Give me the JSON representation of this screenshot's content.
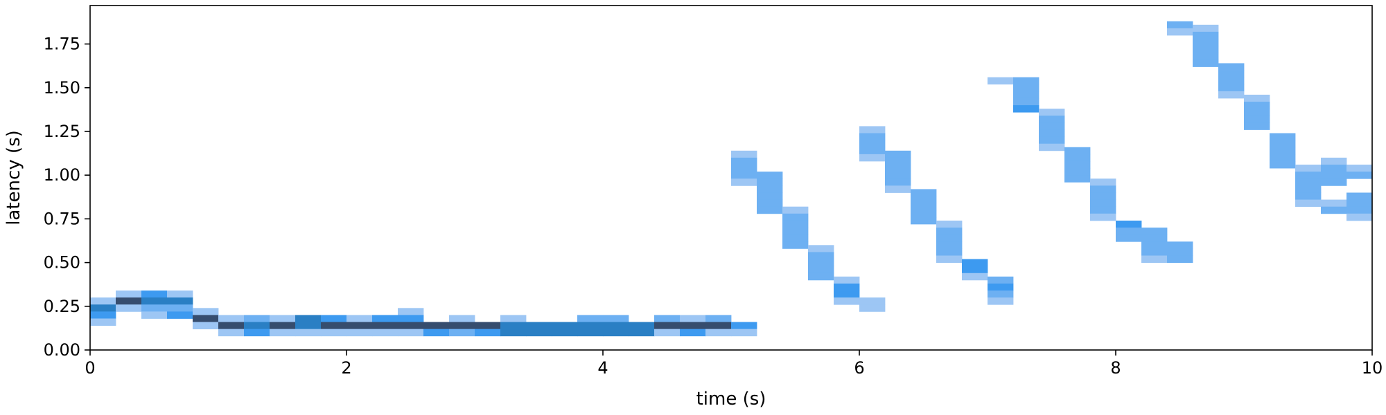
{
  "chart_data": {
    "type": "heatmap",
    "title": "",
    "xlabel": "time (s)",
    "ylabel": "latency (s)",
    "xlim": [
      0,
      10
    ],
    "ylim": [
      0,
      1.97
    ],
    "x_ticks": [
      0,
      2,
      4,
      6,
      8,
      10
    ],
    "x_tick_labels": [
      "0",
      "2",
      "4",
      "6",
      "8",
      "10"
    ],
    "y_ticks": [
      0,
      0.25,
      0.5,
      0.75,
      1.0,
      1.25,
      1.5,
      1.75
    ],
    "y_tick_labels": [
      "0.00",
      "0.25",
      "0.50",
      "0.75",
      "1.00",
      "1.25",
      "1.50",
      "1.75"
    ],
    "x_bin_width": 0.2,
    "y_bin_height": 0.04,
    "grid": false,
    "colors": {
      "light": "#9dc6f4",
      "medium": "#6db0f2",
      "strong": "#3d9af0",
      "dark": "#2a7fc4",
      "darkest": "#364d6e"
    },
    "cells": [
      {
        "x": 0.0,
        "y": 0.26,
        "level": "light"
      },
      {
        "x": 0.0,
        "y": 0.22,
        "level": "dark"
      },
      {
        "x": 0.0,
        "y": 0.18,
        "level": "strong"
      },
      {
        "x": 0.0,
        "y": 0.14,
        "level": "light"
      },
      {
        "x": 0.2,
        "y": 0.3,
        "level": "light"
      },
      {
        "x": 0.2,
        "y": 0.26,
        "level": "darkest"
      },
      {
        "x": 0.2,
        "y": 0.22,
        "level": "light"
      },
      {
        "x": 0.4,
        "y": 0.3,
        "level": "strong"
      },
      {
        "x": 0.4,
        "y": 0.26,
        "level": "dark"
      },
      {
        "x": 0.4,
        "y": 0.22,
        "level": "medium"
      },
      {
        "x": 0.4,
        "y": 0.18,
        "level": "light"
      },
      {
        "x": 0.6,
        "y": 0.3,
        "level": "light"
      },
      {
        "x": 0.6,
        "y": 0.26,
        "level": "dark"
      },
      {
        "x": 0.6,
        "y": 0.22,
        "level": "medium"
      },
      {
        "x": 0.6,
        "y": 0.18,
        "level": "strong"
      },
      {
        "x": 0.8,
        "y": 0.2,
        "level": "light"
      },
      {
        "x": 0.8,
        "y": 0.16,
        "level": "darkest"
      },
      {
        "x": 0.8,
        "y": 0.12,
        "level": "light"
      },
      {
        "x": 1.0,
        "y": 0.16,
        "level": "light"
      },
      {
        "x": 1.0,
        "y": 0.12,
        "level": "darkest"
      },
      {
        "x": 1.0,
        "y": 0.08,
        "level": "light"
      },
      {
        "x": 1.2,
        "y": 0.16,
        "level": "medium"
      },
      {
        "x": 1.2,
        "y": 0.12,
        "level": "dark"
      },
      {
        "x": 1.2,
        "y": 0.08,
        "level": "strong"
      },
      {
        "x": 1.4,
        "y": 0.16,
        "level": "light"
      },
      {
        "x": 1.4,
        "y": 0.12,
        "level": "darkest"
      },
      {
        "x": 1.4,
        "y": 0.08,
        "level": "light"
      },
      {
        "x": 1.6,
        "y": 0.16,
        "level": "dark"
      },
      {
        "x": 1.6,
        "y": 0.12,
        "level": "dark"
      },
      {
        "x": 1.6,
        "y": 0.08,
        "level": "light"
      },
      {
        "x": 1.8,
        "y": 0.16,
        "level": "strong"
      },
      {
        "x": 1.8,
        "y": 0.12,
        "level": "darkest"
      },
      {
        "x": 1.8,
        "y": 0.08,
        "level": "light"
      },
      {
        "x": 2.0,
        "y": 0.16,
        "level": "light"
      },
      {
        "x": 2.0,
        "y": 0.12,
        "level": "darkest"
      },
      {
        "x": 2.0,
        "y": 0.08,
        "level": "light"
      },
      {
        "x": 2.2,
        "y": 0.16,
        "level": "strong"
      },
      {
        "x": 2.2,
        "y": 0.12,
        "level": "darkest"
      },
      {
        "x": 2.2,
        "y": 0.08,
        "level": "light"
      },
      {
        "x": 2.4,
        "y": 0.2,
        "level": "light"
      },
      {
        "x": 2.4,
        "y": 0.16,
        "level": "strong"
      },
      {
        "x": 2.4,
        "y": 0.12,
        "level": "darkest"
      },
      {
        "x": 2.4,
        "y": 0.08,
        "level": "light"
      },
      {
        "x": 2.6,
        "y": 0.12,
        "level": "darkest"
      },
      {
        "x": 2.6,
        "y": 0.08,
        "level": "strong"
      },
      {
        "x": 2.8,
        "y": 0.16,
        "level": "light"
      },
      {
        "x": 2.8,
        "y": 0.12,
        "level": "darkest"
      },
      {
        "x": 2.8,
        "y": 0.08,
        "level": "medium"
      },
      {
        "x": 3.0,
        "y": 0.12,
        "level": "darkest"
      },
      {
        "x": 3.0,
        "y": 0.08,
        "level": "strong"
      },
      {
        "x": 3.2,
        "y": 0.16,
        "level": "light"
      },
      {
        "x": 3.2,
        "y": 0.12,
        "level": "dark"
      },
      {
        "x": 3.2,
        "y": 0.08,
        "level": "dark"
      },
      {
        "x": 3.4,
        "y": 0.12,
        "level": "dark"
      },
      {
        "x": 3.4,
        "y": 0.08,
        "level": "dark"
      },
      {
        "x": 3.6,
        "y": 0.12,
        "level": "dark"
      },
      {
        "x": 3.6,
        "y": 0.08,
        "level": "dark"
      },
      {
        "x": 3.8,
        "y": 0.16,
        "level": "medium"
      },
      {
        "x": 3.8,
        "y": 0.12,
        "level": "dark"
      },
      {
        "x": 3.8,
        "y": 0.08,
        "level": "dark"
      },
      {
        "x": 4.0,
        "y": 0.16,
        "level": "medium"
      },
      {
        "x": 4.0,
        "y": 0.12,
        "level": "dark"
      },
      {
        "x": 4.0,
        "y": 0.08,
        "level": "dark"
      },
      {
        "x": 4.2,
        "y": 0.12,
        "level": "dark"
      },
      {
        "x": 4.2,
        "y": 0.08,
        "level": "dark"
      },
      {
        "x": 4.4,
        "y": 0.16,
        "level": "medium"
      },
      {
        "x": 4.4,
        "y": 0.12,
        "level": "darkest"
      },
      {
        "x": 4.4,
        "y": 0.08,
        "level": "light"
      },
      {
        "x": 4.6,
        "y": 0.16,
        "level": "light"
      },
      {
        "x": 4.6,
        "y": 0.12,
        "level": "darkest"
      },
      {
        "x": 4.6,
        "y": 0.08,
        "level": "strong"
      },
      {
        "x": 4.8,
        "y": 0.16,
        "level": "medium"
      },
      {
        "x": 4.8,
        "y": 0.12,
        "level": "darkest"
      },
      {
        "x": 4.8,
        "y": 0.08,
        "level": "light"
      },
      {
        "x": 5.0,
        "y": 0.12,
        "level": "strong"
      },
      {
        "x": 5.0,
        "y": 0.08,
        "level": "light"
      },
      {
        "x": 5.0,
        "y": 1.1,
        "level": "light"
      },
      {
        "x": 5.0,
        "y": 1.06,
        "level": "medium"
      },
      {
        "x": 5.0,
        "y": 1.02,
        "level": "medium"
      },
      {
        "x": 5.0,
        "y": 0.98,
        "level": "medium"
      },
      {
        "x": 5.0,
        "y": 0.94,
        "level": "light"
      },
      {
        "x": 5.2,
        "y": 0.98,
        "level": "medium"
      },
      {
        "x": 5.2,
        "y": 0.94,
        "level": "medium"
      },
      {
        "x": 5.2,
        "y": 0.9,
        "level": "medium"
      },
      {
        "x": 5.2,
        "y": 0.86,
        "level": "medium"
      },
      {
        "x": 5.2,
        "y": 0.82,
        "level": "medium"
      },
      {
        "x": 5.2,
        "y": 0.78,
        "level": "medium"
      },
      {
        "x": 5.4,
        "y": 0.78,
        "level": "light"
      },
      {
        "x": 5.4,
        "y": 0.74,
        "level": "medium"
      },
      {
        "x": 5.4,
        "y": 0.7,
        "level": "medium"
      },
      {
        "x": 5.4,
        "y": 0.66,
        "level": "medium"
      },
      {
        "x": 5.4,
        "y": 0.62,
        "level": "medium"
      },
      {
        "x": 5.4,
        "y": 0.58,
        "level": "medium"
      },
      {
        "x": 5.6,
        "y": 0.56,
        "level": "light"
      },
      {
        "x": 5.6,
        "y": 0.52,
        "level": "medium"
      },
      {
        "x": 5.6,
        "y": 0.48,
        "level": "medium"
      },
      {
        "x": 5.6,
        "y": 0.44,
        "level": "medium"
      },
      {
        "x": 5.6,
        "y": 0.4,
        "level": "medium"
      },
      {
        "x": 5.8,
        "y": 0.38,
        "level": "light"
      },
      {
        "x": 5.8,
        "y": 0.34,
        "level": "strong"
      },
      {
        "x": 5.8,
        "y": 0.3,
        "level": "strong"
      },
      {
        "x": 5.8,
        "y": 0.26,
        "level": "light"
      },
      {
        "x": 6.0,
        "y": 0.26,
        "level": "light"
      },
      {
        "x": 6.0,
        "y": 0.22,
        "level": "light"
      },
      {
        "x": 6.0,
        "y": 1.24,
        "level": "light"
      },
      {
        "x": 6.0,
        "y": 1.2,
        "level": "medium"
      },
      {
        "x": 6.0,
        "y": 1.16,
        "level": "medium"
      },
      {
        "x": 6.0,
        "y": 1.12,
        "level": "medium"
      },
      {
        "x": 6.0,
        "y": 1.08,
        "level": "light"
      },
      {
        "x": 6.2,
        "y": 1.1,
        "level": "medium"
      },
      {
        "x": 6.2,
        "y": 1.06,
        "level": "medium"
      },
      {
        "x": 6.2,
        "y": 1.02,
        "level": "medium"
      },
      {
        "x": 6.2,
        "y": 0.98,
        "level": "medium"
      },
      {
        "x": 6.2,
        "y": 0.94,
        "level": "medium"
      },
      {
        "x": 6.2,
        "y": 0.9,
        "level": "light"
      },
      {
        "x": 6.4,
        "y": 0.88,
        "level": "medium"
      },
      {
        "x": 6.4,
        "y": 0.84,
        "level": "medium"
      },
      {
        "x": 6.4,
        "y": 0.8,
        "level": "medium"
      },
      {
        "x": 6.4,
        "y": 0.76,
        "level": "medium"
      },
      {
        "x": 6.4,
        "y": 0.72,
        "level": "medium"
      },
      {
        "x": 6.6,
        "y": 0.7,
        "level": "light"
      },
      {
        "x": 6.6,
        "y": 0.66,
        "level": "medium"
      },
      {
        "x": 6.6,
        "y": 0.62,
        "level": "medium"
      },
      {
        "x": 6.6,
        "y": 0.58,
        "level": "medium"
      },
      {
        "x": 6.6,
        "y": 0.54,
        "level": "medium"
      },
      {
        "x": 6.6,
        "y": 0.5,
        "level": "light"
      },
      {
        "x": 6.8,
        "y": 0.48,
        "level": "strong"
      },
      {
        "x": 6.8,
        "y": 0.44,
        "level": "strong"
      },
      {
        "x": 6.8,
        "y": 0.4,
        "level": "light"
      },
      {
        "x": 7.0,
        "y": 0.38,
        "level": "medium"
      },
      {
        "x": 7.0,
        "y": 0.34,
        "level": "strong"
      },
      {
        "x": 7.0,
        "y": 0.3,
        "level": "medium"
      },
      {
        "x": 7.0,
        "y": 0.26,
        "level": "light"
      },
      {
        "x": 7.0,
        "y": 1.52,
        "level": "light"
      },
      {
        "x": 7.2,
        "y": 1.52,
        "level": "medium"
      },
      {
        "x": 7.2,
        "y": 1.48,
        "level": "medium"
      },
      {
        "x": 7.2,
        "y": 1.44,
        "level": "medium"
      },
      {
        "x": 7.2,
        "y": 1.4,
        "level": "medium"
      },
      {
        "x": 7.2,
        "y": 1.36,
        "level": "strong"
      },
      {
        "x": 7.4,
        "y": 1.34,
        "level": "light"
      },
      {
        "x": 7.4,
        "y": 1.3,
        "level": "medium"
      },
      {
        "x": 7.4,
        "y": 1.26,
        "level": "medium"
      },
      {
        "x": 7.4,
        "y": 1.22,
        "level": "medium"
      },
      {
        "x": 7.4,
        "y": 1.18,
        "level": "medium"
      },
      {
        "x": 7.4,
        "y": 1.14,
        "level": "light"
      },
      {
        "x": 7.6,
        "y": 1.12,
        "level": "medium"
      },
      {
        "x": 7.6,
        "y": 1.08,
        "level": "medium"
      },
      {
        "x": 7.6,
        "y": 1.04,
        "level": "medium"
      },
      {
        "x": 7.6,
        "y": 1.0,
        "level": "medium"
      },
      {
        "x": 7.6,
        "y": 0.96,
        "level": "medium"
      },
      {
        "x": 7.8,
        "y": 0.94,
        "level": "light"
      },
      {
        "x": 7.8,
        "y": 0.9,
        "level": "medium"
      },
      {
        "x": 7.8,
        "y": 0.86,
        "level": "medium"
      },
      {
        "x": 7.8,
        "y": 0.82,
        "level": "medium"
      },
      {
        "x": 7.8,
        "y": 0.78,
        "level": "medium"
      },
      {
        "x": 7.8,
        "y": 0.74,
        "level": "light"
      },
      {
        "x": 8.0,
        "y": 0.7,
        "level": "strong"
      },
      {
        "x": 8.0,
        "y": 0.66,
        "level": "medium"
      },
      {
        "x": 8.0,
        "y": 0.62,
        "level": "medium"
      },
      {
        "x": 8.2,
        "y": 0.66,
        "level": "medium"
      },
      {
        "x": 8.2,
        "y": 0.62,
        "level": "medium"
      },
      {
        "x": 8.2,
        "y": 0.58,
        "level": "medium"
      },
      {
        "x": 8.2,
        "y": 0.54,
        "level": "medium"
      },
      {
        "x": 8.2,
        "y": 0.5,
        "level": "light"
      },
      {
        "x": 8.4,
        "y": 0.58,
        "level": "medium"
      },
      {
        "x": 8.4,
        "y": 0.54,
        "level": "medium"
      },
      {
        "x": 8.4,
        "y": 0.5,
        "level": "medium"
      },
      {
        "x": 8.4,
        "y": 1.84,
        "level": "medium"
      },
      {
        "x": 8.4,
        "y": 1.8,
        "level": "light"
      },
      {
        "x": 8.6,
        "y": 1.82,
        "level": "light"
      },
      {
        "x": 8.6,
        "y": 1.78,
        "level": "medium"
      },
      {
        "x": 8.6,
        "y": 1.74,
        "level": "medium"
      },
      {
        "x": 8.6,
        "y": 1.7,
        "level": "medium"
      },
      {
        "x": 8.6,
        "y": 1.66,
        "level": "medium"
      },
      {
        "x": 8.6,
        "y": 1.62,
        "level": "medium"
      },
      {
        "x": 8.8,
        "y": 1.6,
        "level": "medium"
      },
      {
        "x": 8.8,
        "y": 1.56,
        "level": "medium"
      },
      {
        "x": 8.8,
        "y": 1.52,
        "level": "medium"
      },
      {
        "x": 8.8,
        "y": 1.48,
        "level": "medium"
      },
      {
        "x": 8.8,
        "y": 1.44,
        "level": "light"
      },
      {
        "x": 9.0,
        "y": 1.42,
        "level": "light"
      },
      {
        "x": 9.0,
        "y": 1.38,
        "level": "medium"
      },
      {
        "x": 9.0,
        "y": 1.34,
        "level": "medium"
      },
      {
        "x": 9.0,
        "y": 1.3,
        "level": "medium"
      },
      {
        "x": 9.0,
        "y": 1.26,
        "level": "medium"
      },
      {
        "x": 9.2,
        "y": 1.2,
        "level": "medium"
      },
      {
        "x": 9.2,
        "y": 1.16,
        "level": "medium"
      },
      {
        "x": 9.2,
        "y": 1.12,
        "level": "medium"
      },
      {
        "x": 9.2,
        "y": 1.08,
        "level": "medium"
      },
      {
        "x": 9.2,
        "y": 1.04,
        "level": "medium"
      },
      {
        "x": 9.4,
        "y": 1.02,
        "level": "light"
      },
      {
        "x": 9.4,
        "y": 0.98,
        "level": "medium"
      },
      {
        "x": 9.4,
        "y": 0.94,
        "level": "medium"
      },
      {
        "x": 9.4,
        "y": 0.9,
        "level": "medium"
      },
      {
        "x": 9.4,
        "y": 0.86,
        "level": "medium"
      },
      {
        "x": 9.4,
        "y": 0.82,
        "level": "light"
      },
      {
        "x": 9.6,
        "y": 1.06,
        "level": "light"
      },
      {
        "x": 9.6,
        "y": 1.02,
        "level": "medium"
      },
      {
        "x": 9.6,
        "y": 0.98,
        "level": "medium"
      },
      {
        "x": 9.6,
        "y": 0.94,
        "level": "medium"
      },
      {
        "x": 9.6,
        "y": 0.82,
        "level": "light"
      },
      {
        "x": 9.6,
        "y": 0.78,
        "level": "medium"
      },
      {
        "x": 9.8,
        "y": 1.02,
        "level": "light"
      },
      {
        "x": 9.8,
        "y": 0.98,
        "level": "medium"
      },
      {
        "x": 9.8,
        "y": 0.86,
        "level": "medium"
      },
      {
        "x": 9.8,
        "y": 0.82,
        "level": "medium"
      },
      {
        "x": 9.8,
        "y": 0.78,
        "level": "medium"
      },
      {
        "x": 9.8,
        "y": 0.74,
        "level": "light"
      }
    ]
  }
}
